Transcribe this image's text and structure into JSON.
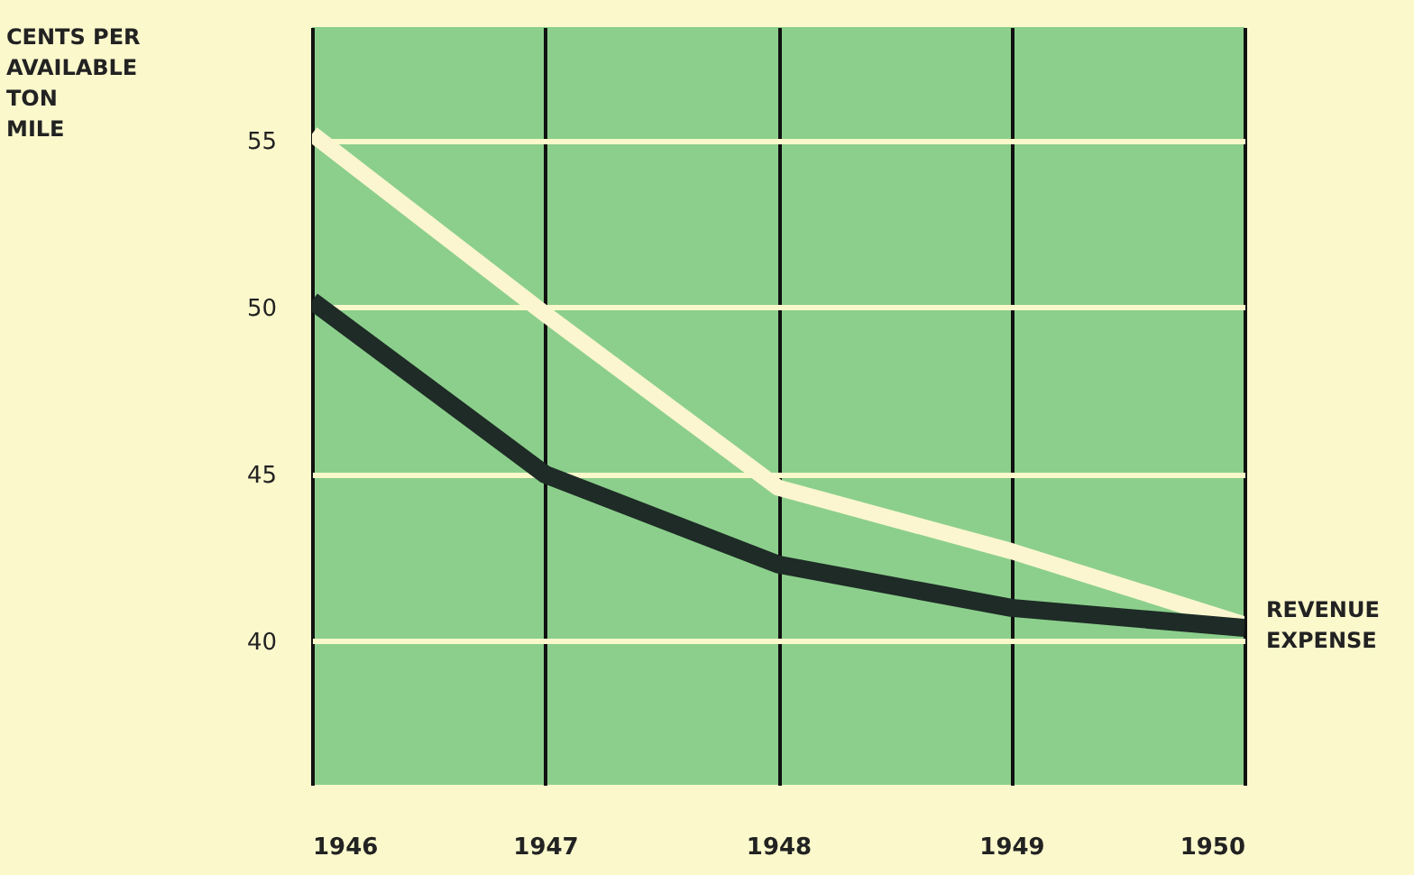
{
  "chart_data": {
    "type": "line",
    "ylabel": "CENTS PER\nAVAILABLE\nTON\nMILE",
    "x": [
      1946,
      1947,
      1948,
      1949,
      1950
    ],
    "xlim": [
      1946,
      1950
    ],
    "xticks": [
      1946,
      1947,
      1948,
      1949,
      1950
    ],
    "ylim": [
      35.7,
      58.4
    ],
    "yticks": [
      40,
      45,
      50,
      55
    ],
    "grid": true,
    "series": [
      {
        "name": "REVENUE",
        "color": "#fbf6cf",
        "values": [
          55.2,
          49.8,
          44.6,
          42.7,
          40.5
        ]
      },
      {
        "name": "EXPENSE",
        "color": "#1e2b26",
        "values": [
          50.2,
          45.0,
          42.3,
          41.0,
          40.4
        ]
      }
    ]
  }
}
